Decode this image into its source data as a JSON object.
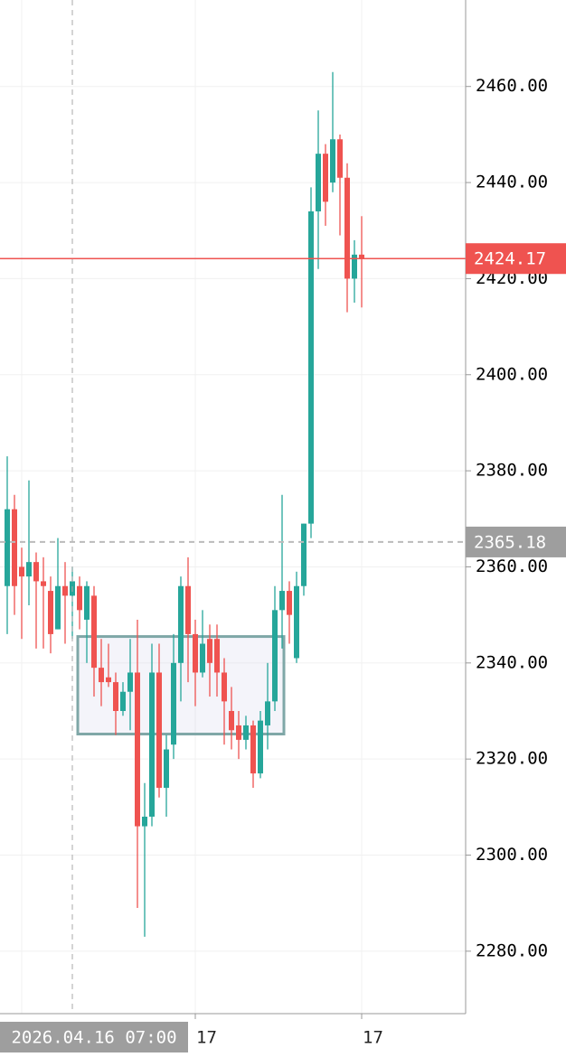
{
  "chart_data": {
    "type": "candlestick",
    "categories": [
      null,
      null,
      null,
      null,
      null,
      null,
      null,
      null,
      null,
      "2026.04.16 07:00",
      null,
      null,
      null,
      null,
      null,
      null,
      null,
      null,
      null,
      null,
      null,
      null,
      null,
      null,
      null,
      null,
      "17",
      null,
      null,
      null,
      null,
      null,
      null,
      null,
      null,
      null,
      null,
      null,
      null,
      null,
      null,
      null,
      null,
      null,
      null,
      null,
      null,
      null,
      null,
      "17"
    ],
    "open": [
      2356,
      2372,
      2360,
      2358,
      2361,
      2357,
      2355,
      2347,
      2356,
      2354,
      2356,
      2349,
      2354,
      2339,
      2337,
      2336,
      2330,
      2334,
      2338,
      2306,
      2308,
      2338,
      2314,
      2323,
      2340,
      2356,
      2346,
      2338,
      2345,
      2345,
      2338,
      2330,
      2327,
      2324,
      2327,
      2317,
      2327,
      2332,
      2351,
      2355,
      2341,
      2356,
      2369,
      2434,
      2446,
      2440,
      2449,
      2441,
      2420,
      2425
    ],
    "high": [
      2383,
      2375,
      2364,
      2378,
      2363,
      2362,
      2358,
      2366,
      2361,
      2360,
      2358,
      2357,
      2356,
      2345,
      2344,
      2338,
      2336,
      2345,
      2349,
      2315,
      2344,
      2344,
      2325,
      2346,
      2358,
      2362,
      2349,
      2351,
      2348,
      2348,
      2341,
      2335,
      2330,
      2329,
      2328,
      2330,
      2340,
      2356,
      2375,
      2357,
      2359,
      2369,
      2439,
      2455,
      2448,
      2463,
      2450,
      2444,
      2428,
      2433
    ],
    "low": [
      2346,
      2350,
      2345,
      2352,
      2343,
      2343,
      2342,
      2347,
      2344,
      2345,
      2347,
      2340,
      2333,
      2331,
      2335,
      2325,
      2329,
      2326,
      2289,
      2283,
      2306,
      2312,
      2308,
      2320,
      2332,
      2336,
      2331,
      2337,
      2333,
      2333,
      2323,
      2322,
      2320,
      2322,
      2314,
      2316,
      2322,
      2330,
      2343,
      2344,
      2340,
      2354,
      2366,
      2422,
      2431,
      2438,
      2429,
      2413,
      2415,
      2414
    ],
    "close": [
      2372,
      2356,
      2358,
      2361,
      2357,
      2356,
      2346,
      2356,
      2354,
      2357,
      2351,
      2356,
      2339,
      2336,
      2336,
      2330,
      2334,
      2338,
      2306,
      2308,
      2338,
      2314,
      2322,
      2340,
      2356,
      2346,
      2338,
      2344,
      2340,
      2338,
      2332,
      2326,
      2324,
      2327,
      2317,
      2328,
      2332,
      2351,
      2355,
      2350,
      2356,
      2369,
      2434,
      2446,
      2436,
      2449,
      2441,
      2420,
      2425,
      2424.17
    ],
    "up_color": "#26a69a",
    "down_color": "#ef5350",
    "ylim": [
      2267,
      2478
    ],
    "yticks": [
      {
        "value": 2280,
        "label": "2280.00"
      },
      {
        "value": 2300,
        "label": "2300.00"
      },
      {
        "value": 2320,
        "label": "2320.00"
      },
      {
        "value": 2340,
        "label": "2340.00"
      },
      {
        "value": 2360,
        "label": "2360.00"
      },
      {
        "value": 2380,
        "label": "2380.00"
      },
      {
        "value": 2400,
        "label": "2400.00"
      },
      {
        "value": 2420,
        "label": "2420.00"
      },
      {
        "value": 2440,
        "label": "2440.00"
      },
      {
        "value": 2460,
        "label": "2460.00"
      }
    ],
    "grid": true,
    "last_price": 2424.17,
    "crosshair_price": 2365.18,
    "zone": {
      "high": 2345.5,
      "low": 2325.2,
      "candles": [
        10,
        38
      ],
      "color": "#7fa7a7"
    }
  }
}
